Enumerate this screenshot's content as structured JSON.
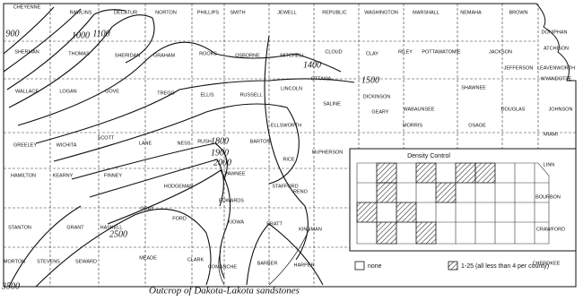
{
  "counties": [
    "CHEYENNE",
    "RAWLINS",
    "DECATUR",
    "NORTON",
    "PHILLIPS",
    "SMITH",
    "JEWELL",
    "REPUBLIC",
    "WASHINGTON",
    "MARSHALL",
    "NEMAHA",
    "BROWN",
    "DONIPHAN",
    "SHERMAN",
    "THOMAS",
    "SHERIDAN",
    "GRAHAM",
    "ROOKS",
    "OSBORNE",
    "MITCHELL",
    "CLOUD",
    "CLAY",
    "RILEY",
    "POTTAWATOMIE",
    "JACKSON",
    "ATCHISON",
    "JEFFERSON",
    "LEAVENWORTH",
    "WYANDOTTE",
    "WALLACE",
    "LOGAN",
    "GOVE",
    "TREGO",
    "ELLIS",
    "RUSSELL",
    "LINCOLN",
    "OTTAWA",
    "SALINE",
    "DICKINSON",
    "GEARY",
    "WABAUNSEE",
    "SHAWNEE",
    "DOUGLAS",
    "JOHNSON",
    "MORRIS",
    "OSAGE",
    "MIAMI",
    "ELLSWORTH",
    "GREELEY",
    "WICHITA",
    "SCOTT",
    "LANE",
    "NESS",
    "RUSH",
    "BARTON",
    "RICE",
    "McPHERSON",
    "LINN",
    "PAWNEE",
    "HODGEMAN",
    "STAFFORD",
    "RENO",
    "EDWARDS",
    "HAMILTON",
    "KEARNY",
    "FINNEY",
    "GRAY",
    "FORD",
    "HASKELL",
    "GRANT",
    "STANTON",
    "KIOWA",
    "PRATT",
    "KINGMAN",
    "BOURBON",
    "CRAWFORD",
    "MORTON",
    "STEVENS",
    "SEWARD",
    "MEADE",
    "CLARK",
    "COMANCHE",
    "BARBER",
    "HARPER",
    "CHEROKEE"
  ],
  "contours": [
    "900",
    "1000",
    "1100",
    "1400",
    "1500",
    "1800",
    "1900",
    "2000",
    "2500",
    "3500"
  ],
  "outcrop_label": "Outcrop of Dakota-Lakota sandstones",
  "inset": {
    "title": "Density Control",
    "legend": [
      "none",
      "1-25 (all less than 4 per county)"
    ]
  }
}
